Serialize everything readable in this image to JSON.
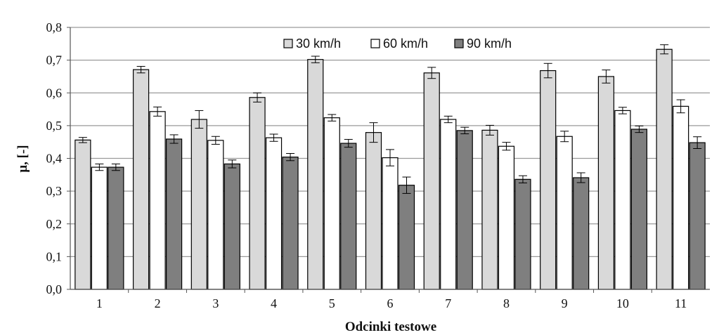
{
  "chart_data": {
    "type": "bar",
    "title": "",
    "xlabel": "Odcinki testowe",
    "ylabel": "μ, [-]",
    "ylim": [
      0,
      0.8
    ],
    "yticks": [
      "0,0",
      "0,1",
      "0,2",
      "0,3",
      "0,4",
      "0,5",
      "0,6",
      "0,7",
      "0,8"
    ],
    "grid": "horizontal",
    "legend_position": "top-right",
    "error_bars": true,
    "categories": [
      "1",
      "2",
      "3",
      "4",
      "5",
      "6",
      "7",
      "8",
      "9",
      "10",
      "11"
    ],
    "series": [
      {
        "name": "30 km/h",
        "color": "#d9d9d9",
        "values": [
          0.456,
          0.671,
          0.519,
          0.586,
          0.702,
          0.479,
          0.661,
          0.486,
          0.668,
          0.65,
          0.733
        ],
        "errors": [
          0.008,
          0.01,
          0.027,
          0.014,
          0.01,
          0.03,
          0.017,
          0.015,
          0.022,
          0.02,
          0.014
        ]
      },
      {
        "name": "60 km/h",
        "color": "#ffffff",
        "values": [
          0.373,
          0.543,
          0.455,
          0.463,
          0.524,
          0.402,
          0.519,
          0.437,
          0.467,
          0.546,
          0.559
        ],
        "errors": [
          0.01,
          0.014,
          0.012,
          0.011,
          0.01,
          0.025,
          0.01,
          0.012,
          0.016,
          0.01,
          0.02
        ]
      },
      {
        "name": "90 km/h",
        "color": "#7f7f7f",
        "values": [
          0.373,
          0.459,
          0.383,
          0.404,
          0.446,
          0.318,
          0.485,
          0.336,
          0.341,
          0.489,
          0.448
        ],
        "errors": [
          0.01,
          0.013,
          0.012,
          0.011,
          0.012,
          0.025,
          0.01,
          0.011,
          0.015,
          0.01,
          0.018
        ]
      }
    ]
  }
}
